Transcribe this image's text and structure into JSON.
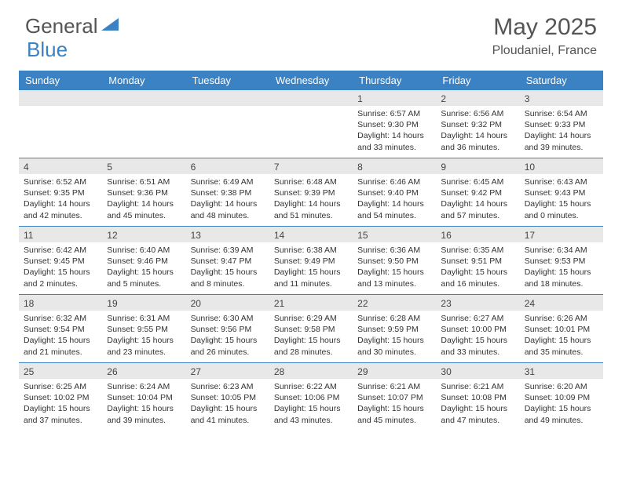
{
  "logo": {
    "general": "General",
    "blue": "Blue"
  },
  "title": "May 2025",
  "location": "Ploudaniel, France",
  "colors": {
    "header_bg": "#3b82c4",
    "header_text": "#ffffff",
    "daynum_bg": "#e8e8e8",
    "border": "#3b82c4",
    "logo_gray": "#555555",
    "logo_blue": "#3b82c4"
  },
  "day_names": [
    "Sunday",
    "Monday",
    "Tuesday",
    "Wednesday",
    "Thursday",
    "Friday",
    "Saturday"
  ],
  "weeks": [
    [
      {
        "num": "",
        "sunrise": "",
        "sunset": "",
        "daylight": ""
      },
      {
        "num": "",
        "sunrise": "",
        "sunset": "",
        "daylight": ""
      },
      {
        "num": "",
        "sunrise": "",
        "sunset": "",
        "daylight": ""
      },
      {
        "num": "",
        "sunrise": "",
        "sunset": "",
        "daylight": ""
      },
      {
        "num": "1",
        "sunrise": "Sunrise: 6:57 AM",
        "sunset": "Sunset: 9:30 PM",
        "daylight": "Daylight: 14 hours and 33 minutes."
      },
      {
        "num": "2",
        "sunrise": "Sunrise: 6:56 AM",
        "sunset": "Sunset: 9:32 PM",
        "daylight": "Daylight: 14 hours and 36 minutes."
      },
      {
        "num": "3",
        "sunrise": "Sunrise: 6:54 AM",
        "sunset": "Sunset: 9:33 PM",
        "daylight": "Daylight: 14 hours and 39 minutes."
      }
    ],
    [
      {
        "num": "4",
        "sunrise": "Sunrise: 6:52 AM",
        "sunset": "Sunset: 9:35 PM",
        "daylight": "Daylight: 14 hours and 42 minutes."
      },
      {
        "num": "5",
        "sunrise": "Sunrise: 6:51 AM",
        "sunset": "Sunset: 9:36 PM",
        "daylight": "Daylight: 14 hours and 45 minutes."
      },
      {
        "num": "6",
        "sunrise": "Sunrise: 6:49 AM",
        "sunset": "Sunset: 9:38 PM",
        "daylight": "Daylight: 14 hours and 48 minutes."
      },
      {
        "num": "7",
        "sunrise": "Sunrise: 6:48 AM",
        "sunset": "Sunset: 9:39 PM",
        "daylight": "Daylight: 14 hours and 51 minutes."
      },
      {
        "num": "8",
        "sunrise": "Sunrise: 6:46 AM",
        "sunset": "Sunset: 9:40 PM",
        "daylight": "Daylight: 14 hours and 54 minutes."
      },
      {
        "num": "9",
        "sunrise": "Sunrise: 6:45 AM",
        "sunset": "Sunset: 9:42 PM",
        "daylight": "Daylight: 14 hours and 57 minutes."
      },
      {
        "num": "10",
        "sunrise": "Sunrise: 6:43 AM",
        "sunset": "Sunset: 9:43 PM",
        "daylight": "Daylight: 15 hours and 0 minutes."
      }
    ],
    [
      {
        "num": "11",
        "sunrise": "Sunrise: 6:42 AM",
        "sunset": "Sunset: 9:45 PM",
        "daylight": "Daylight: 15 hours and 2 minutes."
      },
      {
        "num": "12",
        "sunrise": "Sunrise: 6:40 AM",
        "sunset": "Sunset: 9:46 PM",
        "daylight": "Daylight: 15 hours and 5 minutes."
      },
      {
        "num": "13",
        "sunrise": "Sunrise: 6:39 AM",
        "sunset": "Sunset: 9:47 PM",
        "daylight": "Daylight: 15 hours and 8 minutes."
      },
      {
        "num": "14",
        "sunrise": "Sunrise: 6:38 AM",
        "sunset": "Sunset: 9:49 PM",
        "daylight": "Daylight: 15 hours and 11 minutes."
      },
      {
        "num": "15",
        "sunrise": "Sunrise: 6:36 AM",
        "sunset": "Sunset: 9:50 PM",
        "daylight": "Daylight: 15 hours and 13 minutes."
      },
      {
        "num": "16",
        "sunrise": "Sunrise: 6:35 AM",
        "sunset": "Sunset: 9:51 PM",
        "daylight": "Daylight: 15 hours and 16 minutes."
      },
      {
        "num": "17",
        "sunrise": "Sunrise: 6:34 AM",
        "sunset": "Sunset: 9:53 PM",
        "daylight": "Daylight: 15 hours and 18 minutes."
      }
    ],
    [
      {
        "num": "18",
        "sunrise": "Sunrise: 6:32 AM",
        "sunset": "Sunset: 9:54 PM",
        "daylight": "Daylight: 15 hours and 21 minutes."
      },
      {
        "num": "19",
        "sunrise": "Sunrise: 6:31 AM",
        "sunset": "Sunset: 9:55 PM",
        "daylight": "Daylight: 15 hours and 23 minutes."
      },
      {
        "num": "20",
        "sunrise": "Sunrise: 6:30 AM",
        "sunset": "Sunset: 9:56 PM",
        "daylight": "Daylight: 15 hours and 26 minutes."
      },
      {
        "num": "21",
        "sunrise": "Sunrise: 6:29 AM",
        "sunset": "Sunset: 9:58 PM",
        "daylight": "Daylight: 15 hours and 28 minutes."
      },
      {
        "num": "22",
        "sunrise": "Sunrise: 6:28 AM",
        "sunset": "Sunset: 9:59 PM",
        "daylight": "Daylight: 15 hours and 30 minutes."
      },
      {
        "num": "23",
        "sunrise": "Sunrise: 6:27 AM",
        "sunset": "Sunset: 10:00 PM",
        "daylight": "Daylight: 15 hours and 33 minutes."
      },
      {
        "num": "24",
        "sunrise": "Sunrise: 6:26 AM",
        "sunset": "Sunset: 10:01 PM",
        "daylight": "Daylight: 15 hours and 35 minutes."
      }
    ],
    [
      {
        "num": "25",
        "sunrise": "Sunrise: 6:25 AM",
        "sunset": "Sunset: 10:02 PM",
        "daylight": "Daylight: 15 hours and 37 minutes."
      },
      {
        "num": "26",
        "sunrise": "Sunrise: 6:24 AM",
        "sunset": "Sunset: 10:04 PM",
        "daylight": "Daylight: 15 hours and 39 minutes."
      },
      {
        "num": "27",
        "sunrise": "Sunrise: 6:23 AM",
        "sunset": "Sunset: 10:05 PM",
        "daylight": "Daylight: 15 hours and 41 minutes."
      },
      {
        "num": "28",
        "sunrise": "Sunrise: 6:22 AM",
        "sunset": "Sunset: 10:06 PM",
        "daylight": "Daylight: 15 hours and 43 minutes."
      },
      {
        "num": "29",
        "sunrise": "Sunrise: 6:21 AM",
        "sunset": "Sunset: 10:07 PM",
        "daylight": "Daylight: 15 hours and 45 minutes."
      },
      {
        "num": "30",
        "sunrise": "Sunrise: 6:21 AM",
        "sunset": "Sunset: 10:08 PM",
        "daylight": "Daylight: 15 hours and 47 minutes."
      },
      {
        "num": "31",
        "sunrise": "Sunrise: 6:20 AM",
        "sunset": "Sunset: 10:09 PM",
        "daylight": "Daylight: 15 hours and 49 minutes."
      }
    ]
  ]
}
